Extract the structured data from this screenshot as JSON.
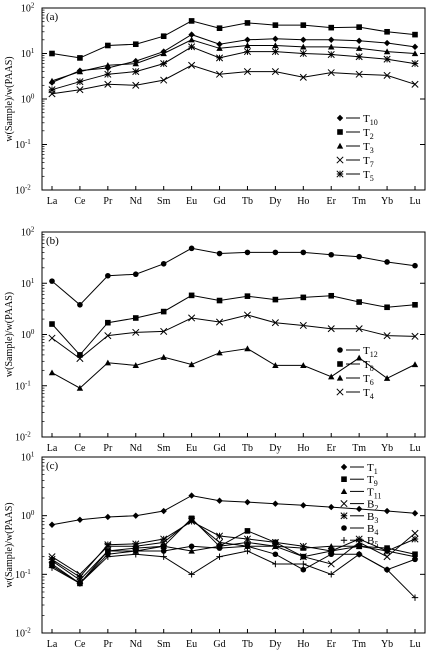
{
  "chart_data": [
    {
      "type": "line",
      "panel_label": "(a)",
      "ylabel": "w(Sample)/w(PAAS)",
      "yscale": "log",
      "ylim": [
        0.01,
        100
      ],
      "yticks": [
        "10⁻²",
        "10⁻¹",
        "10⁰",
        "10¹",
        "10²"
      ],
      "categories": [
        "La",
        "Ce",
        "Pr",
        "Nd",
        "Sm",
        "Eu",
        "Gd",
        "Tb",
        "Dy",
        "Ho",
        "Er",
        "Tm",
        "Yb",
        "Lu"
      ],
      "legend_position": "bottom-right",
      "series": [
        {
          "name": "T",
          "sub": "10",
          "marker": "diamond",
          "values": [
            2.3,
            4.2,
            4.8,
            6.8,
            11,
            26,
            16,
            20,
            21,
            20,
            20,
            19,
            17,
            14
          ]
        },
        {
          "name": "T",
          "sub": "2",
          "marker": "square",
          "values": [
            10,
            8,
            15,
            16,
            24,
            52,
            36,
            47,
            42,
            42,
            37,
            38,
            30,
            26
          ]
        },
        {
          "name": "T",
          "sub": "3",
          "marker": "triangle",
          "values": [
            2.5,
            4,
            5.5,
            6,
            10,
            20,
            13,
            15,
            15,
            14,
            14,
            13,
            11,
            10
          ]
        },
        {
          "name": "T",
          "sub": "7",
          "marker": "x",
          "values": [
            1.3,
            1.6,
            2.1,
            2,
            2.6,
            5.5,
            3.5,
            4,
            4,
            3,
            3.8,
            3.5,
            3.3,
            2.1
          ]
        },
        {
          "name": "T",
          "sub": "5",
          "marker": "asterisk",
          "values": [
            1.6,
            2.4,
            3.5,
            4,
            6,
            14,
            8,
            11,
            11,
            10,
            9.5,
            8.5,
            7.5,
            6
          ]
        }
      ]
    },
    {
      "type": "line",
      "panel_label": "(b)",
      "ylabel": "w(Sample)/w(PAAS)",
      "yscale": "log",
      "ylim": [
        0.01,
        100
      ],
      "yticks": [
        "10⁻²",
        "10⁻¹",
        "10⁰",
        "10¹",
        "10²"
      ],
      "categories": [
        "La",
        "Ce",
        "Pr",
        "Nd",
        "Sm",
        "Eu",
        "Gd",
        "Tb",
        "Dy",
        "Ho",
        "Er",
        "Tm",
        "Yb",
        "Lu"
      ],
      "legend_position": "bottom-right",
      "series": [
        {
          "name": "T",
          "sub": "12",
          "marker": "circle",
          "values": [
            11,
            3.8,
            14,
            15,
            24,
            48,
            38,
            40,
            40,
            40,
            36,
            33,
            26,
            22
          ]
        },
        {
          "name": "T",
          "sub": "8",
          "marker": "square",
          "values": [
            1.6,
            0.4,
            1.7,
            2.1,
            2.8,
            5.8,
            4.6,
            5.6,
            4.8,
            5.3,
            5.7,
            4.3,
            3.4,
            3.8
          ]
        },
        {
          "name": "T",
          "sub": "6",
          "marker": "triangle",
          "values": [
            0.18,
            0.09,
            0.28,
            0.25,
            0.36,
            0.26,
            0.44,
            0.53,
            0.25,
            0.25,
            0.15,
            0.35,
            0.14,
            0.26
          ]
        },
        {
          "name": "T",
          "sub": "4",
          "marker": "x",
          "values": [
            0.85,
            0.34,
            0.95,
            1.1,
            1.15,
            2.1,
            1.75,
            2.4,
            1.7,
            1.5,
            1.3,
            1.3,
            0.95,
            0.92
          ]
        }
      ]
    },
    {
      "type": "line",
      "panel_label": "(c)",
      "ylabel": "w(Sample)/w(PAAS)",
      "yscale": "log",
      "ylim": [
        0.01,
        10
      ],
      "yticks": [
        "10⁻²",
        "10⁻¹",
        "10⁰",
        "10¹"
      ],
      "categories": [
        "La",
        "Ce",
        "Pr",
        "Nd",
        "Sm",
        "Eu",
        "Gd",
        "Tb",
        "Dy",
        "Ho",
        "Er",
        "Tm",
        "Yb",
        "Lu"
      ],
      "legend_position": "top-right",
      "series": [
        {
          "name": "T",
          "sub": "1",
          "marker": "diamond",
          "values": [
            0.7,
            0.85,
            0.95,
            1.0,
            1.2,
            2.2,
            1.8,
            1.7,
            1.6,
            1.5,
            1.4,
            1.3,
            1.2,
            1.1
          ]
        },
        {
          "name": "T",
          "sub": "9",
          "marker": "square",
          "values": [
            0.15,
            0.07,
            0.25,
            0.28,
            0.3,
            0.9,
            0.3,
            0.55,
            0.35,
            0.2,
            0.25,
            0.3,
            0.28,
            0.22
          ]
        },
        {
          "name": "T",
          "sub": "11",
          "marker": "triangle",
          "values": [
            0.17,
            0.08,
            0.25,
            0.25,
            0.3,
            0.25,
            0.3,
            0.35,
            0.3,
            0.28,
            0.3,
            0.3,
            0.25,
            0.2
          ]
        },
        {
          "name": "B",
          "sub": "2",
          "marker": "x",
          "values": [
            0.2,
            0.1,
            0.3,
            0.3,
            0.35,
            0.85,
            0.35,
            0.3,
            0.3,
            0.2,
            0.15,
            0.35,
            0.2,
            0.5
          ]
        },
        {
          "name": "B",
          "sub": "3",
          "marker": "asterisk",
          "values": [
            0.18,
            0.09,
            0.32,
            0.33,
            0.4,
            0.8,
            0.45,
            0.4,
            0.35,
            0.3,
            0.25,
            0.4,
            0.25,
            0.4
          ]
        },
        {
          "name": "B",
          "sub": "4",
          "marker": "circle",
          "values": [
            0.14,
            0.07,
            0.22,
            0.25,
            0.25,
            0.3,
            0.28,
            0.3,
            0.22,
            0.12,
            0.22,
            0.22,
            0.12,
            0.18
          ]
        },
        {
          "name": "B",
          "sub": "5",
          "marker": "plus",
          "values": [
            0.13,
            0.07,
            0.2,
            0.22,
            0.2,
            0.1,
            0.2,
            0.25,
            0.15,
            0.15,
            0.1,
            0.22,
            0.12,
            0.04
          ]
        }
      ]
    }
  ]
}
